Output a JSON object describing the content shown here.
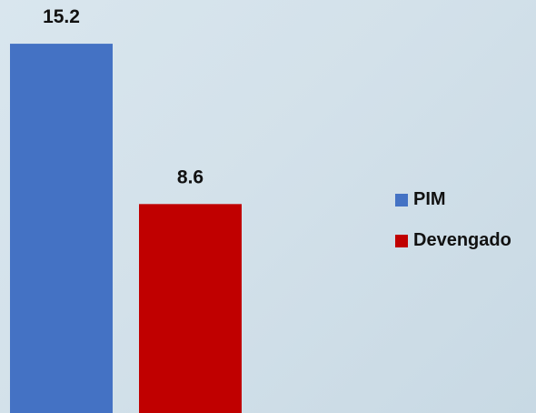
{
  "chart_data": {
    "type": "bar",
    "categories": [
      ""
    ],
    "series": [
      {
        "name": "PIM",
        "values": [
          15.2
        ],
        "color": "#4472C4"
      },
      {
        "name": "Devengado",
        "values": [
          8.6
        ],
        "color": "#C00000"
      }
    ],
    "data_labels": [
      "15.2",
      "8.6"
    ],
    "ylim": [
      0,
      17
    ],
    "grid": false,
    "legend_position": "right"
  }
}
